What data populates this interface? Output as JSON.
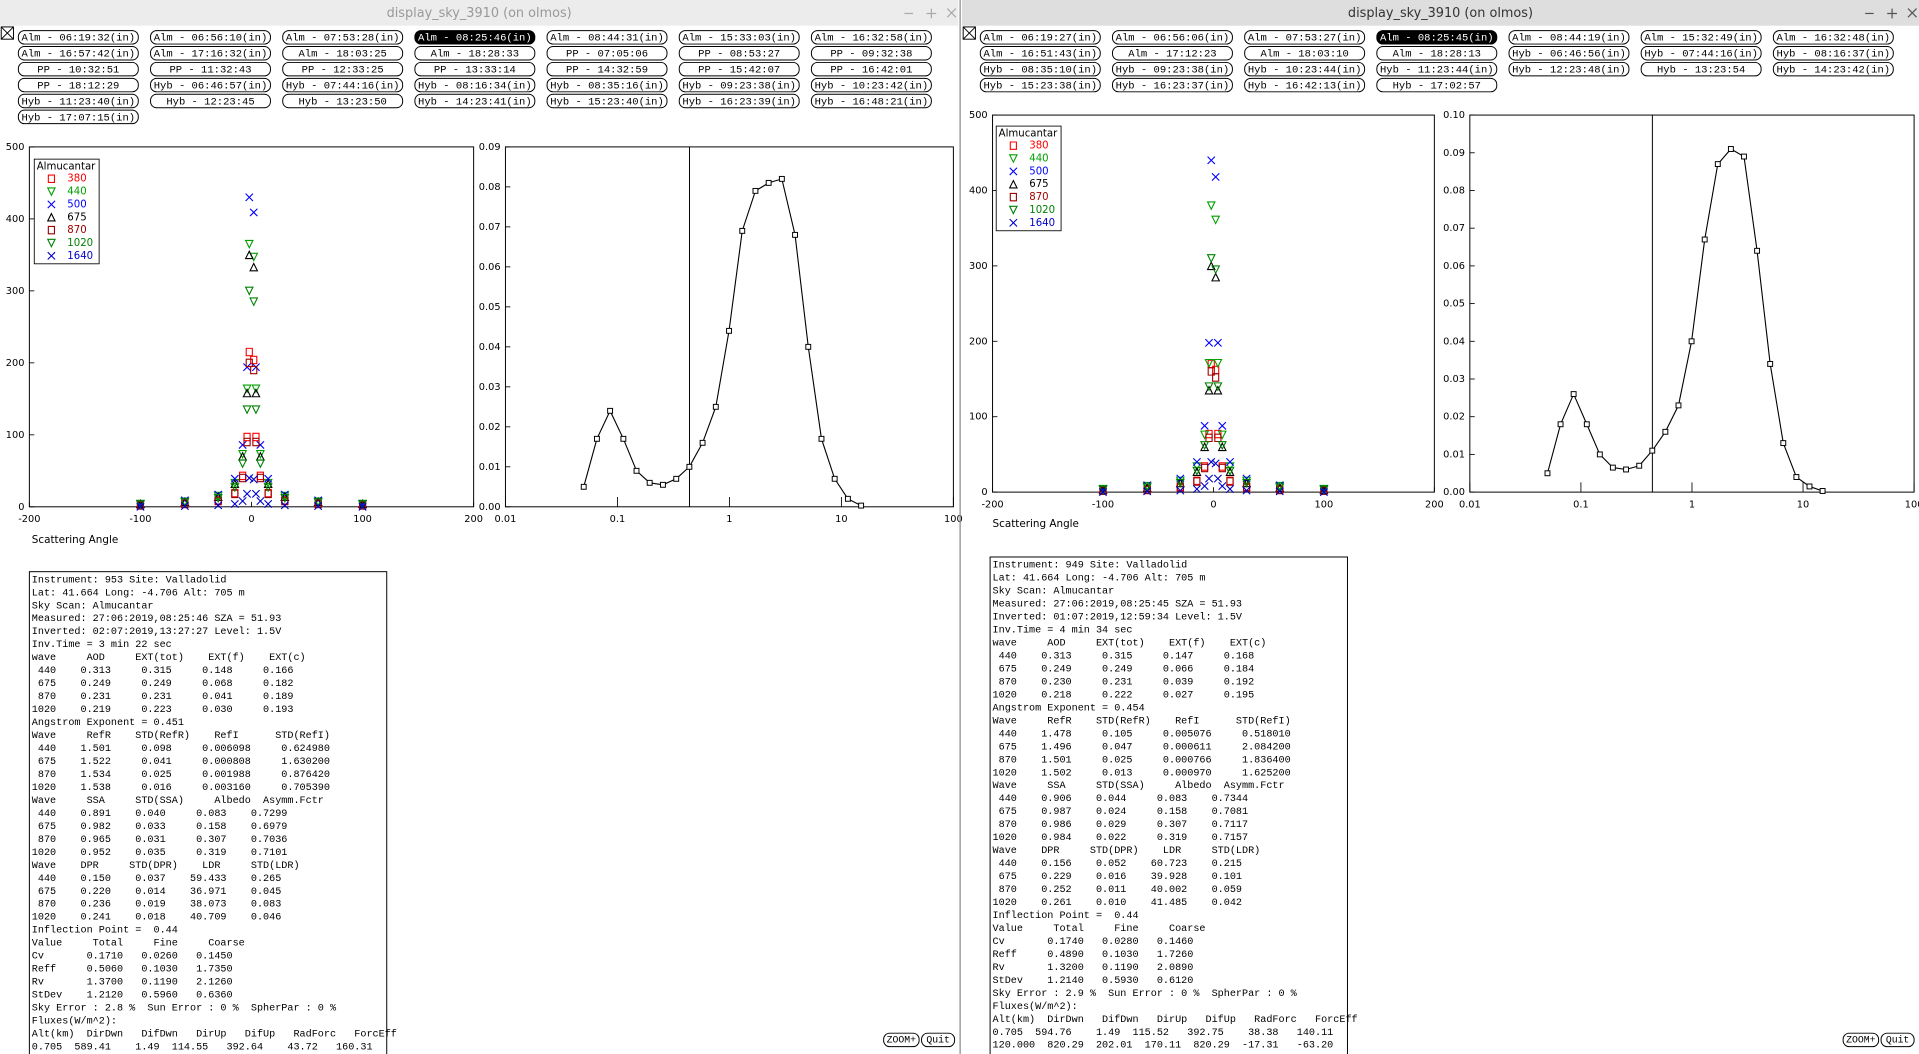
{
  "windows": [
    {
      "title": "display_sky_3910 (on olmos)",
      "active": false,
      "selected_button": 3,
      "buttons": [
        "Alm - 06:19:32(in)",
        "Alm - 06:56:10(in)",
        "Alm - 07:53:28(in)",
        "Alm - 08:25:46(in)",
        "Alm - 08:44:31(in)",
        "Alm - 15:33:03(in)",
        "Alm - 16:32:58(in)",
        "Alm - 16:57:42(in)",
        "Alm - 17:16:32(in)",
        "Alm - 18:03:25",
        "Alm - 18:28:33",
        "PP - 07:05:06",
        "PP - 08:53:27",
        "PP - 09:32:38",
        "PP - 10:32:51",
        "PP - 11:32:43",
        "PP - 12:33:25",
        "PP - 13:33:14",
        "PP - 14:32:59",
        "PP - 15:42:07",
        "PP - 16:42:01",
        "PP - 18:12:29",
        "Hyb - 06:46:57(in)",
        "Hyb - 07:44:16(in)",
        "Hyb - 08:16:34(in)",
        "Hyb - 08:35:16(in)",
        "Hyb - 09:23:38(in)",
        "Hyb - 10:23:42(in)",
        "Hyb - 11:23:40(in)",
        "Hyb - 12:23:45",
        "Hyb - 13:23:50",
        "Hyb - 14:23:41(in)",
        "Hyb - 15:23:40(in)",
        "Hyb - 16:23:39(in)",
        "Hyb - 16:48:21(in)",
        "Hyb - 17:07:15(in)"
      ],
      "scatter": {
        "type": "scatter",
        "x_label": "Scattering Angle",
        "legend_title": "Almucantar",
        "x": [
          -100,
          -60,
          -30,
          -15,
          -8,
          -4,
          -2,
          2,
          4,
          8,
          15,
          30,
          60,
          100
        ],
        "xlim": [
          -200,
          200
        ],
        "xticks": [
          -200,
          -100,
          0,
          100,
          200
        ],
        "ylim": [
          0,
          500
        ],
        "yticks": [
          0,
          100,
          200,
          300,
          400,
          500
        ],
        "series": [
          {
            "name": "380",
            "color": "#ff0000",
            "marker": "square",
            "values": [
              2,
              4,
              9,
              19,
              43,
              97,
              215,
              204,
              97,
              43,
              19,
              9,
              4,
              2
            ]
          },
          {
            "name": "440",
            "color": "#00a000",
            "marker": "triangle-down",
            "values": [
              4,
              7,
              15,
              33,
              73,
              164,
              365,
              347,
              164,
              73,
              33,
              15,
              7,
              4
            ]
          },
          {
            "name": "500",
            "color": "#0000ff",
            "marker": "x",
            "values": [
              4,
              9,
              17,
              39,
              86,
              194,
              430,
              409,
              194,
              86,
              39,
              17,
              9,
              4
            ]
          },
          {
            "name": "675",
            "color": "#000000",
            "marker": "triangle-up",
            "values": [
              4,
              7,
              14,
              32,
              70,
              158,
              350,
              333,
              158,
              70,
              32,
              14,
              7,
              4
            ]
          },
          {
            "name": "870",
            "color": "#a00000",
            "marker": "square",
            "values": [
              2,
              4,
              8,
              18,
              40,
              90,
              200,
              190,
              90,
              40,
              18,
              8,
              4,
              2
            ]
          },
          {
            "name": "1020",
            "color": "#008000",
            "marker": "triangle-down",
            "values": [
              3,
              6,
              12,
              27,
              60,
              135,
              300,
              285,
              135,
              60,
              27,
              12,
              6,
              3
            ]
          },
          {
            "name": "1640",
            "color": "#0000cc",
            "marker": "x",
            "values": [
              0,
              1,
              2,
              4,
              8,
              18,
              40,
              38,
              18,
              8,
              4,
              2,
              1,
              0
            ]
          }
        ]
      },
      "size_distribution": {
        "type": "line",
        "log_x": true,
        "vline": 0.44,
        "x": [
          0.05,
          0.0656,
          0.086,
          0.113,
          0.148,
          0.194,
          0.255,
          0.335,
          0.439,
          0.576,
          0.756,
          0.992,
          1.302,
          1.708,
          2.241,
          2.94,
          3.857,
          5.06,
          6.64,
          8.71,
          11.43,
          15.0
        ],
        "values": [
          0.005,
          0.017,
          0.024,
          0.017,
          0.009,
          0.006,
          0.0055,
          0.007,
          0.01,
          0.016,
          0.025,
          0.044,
          0.069,
          0.079,
          0.081,
          0.082,
          0.068,
          0.04,
          0.017,
          0.007,
          0.002,
          0.0003
        ],
        "xlim": [
          0.01,
          100
        ],
        "xticks": [
          0.01,
          0.1,
          1,
          10,
          100
        ],
        "ylim": [
          0,
          0.09
        ],
        "yticks": [
          {
            "value": 0,
            "label": "0.00"
          },
          0.01,
          0.02,
          0.03,
          0.04,
          0.05,
          0.06,
          0.07,
          0.08,
          0.09
        ]
      },
      "report": [
        "Instrument: 953 Site: Valladolid",
        "Lat: 41.664 Long: -4.706 Alt: 705 m",
        "Sky Scan: Almucantar",
        "Measured: 27:06:2019,08:25:46 SZA = 51.93",
        "Inverted: 02:07:2019,13:27:27 Level: 1.5V",
        "Inv.Time = 3 min 22 sec",
        "wave     AOD     EXT(tot)    EXT(f)    EXT(c)",
        " 440    0.313     0.315     0.148     0.166",
        " 675    0.249     0.249     0.068     0.182",
        " 870    0.231     0.231     0.041     0.189",
        "1020    0.219     0.223     0.030     0.193",
        "Angstrom Exponent = 0.451",
        "Wave     RefR    STD(RefR)    RefI      STD(RefI)",
        " 440    1.501     0.098     0.006098     0.624980",
        " 675    1.522     0.041     0.000808     1.630200",
        " 870    1.534     0.025     0.001988     0.876420",
        "1020    1.538     0.016     0.003160     0.705390",
        "Wave     SSA     STD(SSA)     Albedo  Asymm.Fctr",
        " 440    0.891    0.040     0.083    0.7299",
        " 675    0.982    0.033     0.158    0.6979",
        " 870    0.965    0.031     0.307    0.7036",
        "1020    0.952    0.035     0.319    0.7101",
        "Wave    DPR     STD(DPR)    LDR     STD(LDR)",
        " 440    0.150    0.037    59.433    0.265",
        " 675    0.220    0.014    36.971    0.045",
        " 870    0.236    0.019    38.073    0.083",
        "1020    0.241    0.018    40.709    0.046",
        "Inflection Point =  0.44",
        "Value     Total     Fine     Coarse",
        "Cv       0.1710   0.0260   0.1450",
        "Reff     0.5060   0.1030   1.7350",
        "Rv       1.3700   0.1190   2.1260",
        "StDev    1.2120   0.5960   0.6360",
        "Sky Error : 2.8 %  Sun Error : 0 %  SpherPar : 0 %",
        "Fluxes(W/m^2):",
        "Alt(km)  DirDwn   DifDwn   DirUp   DifUp   RadForc   ForcEff",
        "0.705  589.41    1.49  114.55   392.64    43.72   160.31"
      ],
      "controls": [
        "ZOOM+",
        "Quit"
      ]
    },
    {
      "title": "display_sky_3910 (on olmos)",
      "active": true,
      "selected_button": 3,
      "buttons": [
        "Alm - 06:19:27(in)",
        "Alm - 06:56:06(in)",
        "Alm - 07:53:27(in)",
        "Alm - 08:25:45(in)",
        "Alm - 08:44:19(in)",
        "Alm - 15:32:49(in)",
        "Alm - 16:32:48(in)",
        "Alm - 16:51:43(in)",
        "Alm - 17:12:23",
        "Alm - 18:03:10",
        "Alm - 18:28:13",
        "Hyb - 06:46:56(in)",
        "Hyb - 07:44:16(in)",
        "Hyb - 08:16:37(in)",
        "Hyb - 08:35:10(in)",
        "Hyb - 09:23:38(in)",
        "Hyb - 10:23:44(in)",
        "Hyb - 11:23:44(in)",
        "Hyb - 12:23:48(in)",
        "Hyb - 13:23:54",
        "Hyb - 14:23:42(in)",
        "Hyb - 15:23:38(in)",
        "Hyb - 16:23:37(in)",
        "Hyb - 16:42:13(in)",
        "Hyb - 17:02:57"
      ],
      "scatter": {
        "type": "scatter",
        "x_label": "Scattering Angle",
        "legend_title": "Almucantar",
        "x": [
          -100,
          -60,
          -30,
          -15,
          -8,
          -4,
          -2,
          2,
          4,
          8,
          15,
          30,
          60,
          100
        ],
        "xlim": [
          -200,
          200
        ],
        "xticks": [
          -200,
          -100,
          0,
          100,
          200
        ],
        "ylim": [
          0,
          500
        ],
        "yticks": [
          0,
          100,
          200,
          300,
          400,
          500
        ],
        "series": [
          {
            "name": "380",
            "color": "#ff0000",
            "marker": "square",
            "values": [
              2,
              3,
              7,
              15,
              34,
              77,
              170,
              162,
              77,
              34,
              15,
              7,
              3,
              2
            ]
          },
          {
            "name": "440",
            "color": "#00a000",
            "marker": "triangle-down",
            "values": [
              4,
              8,
              15,
              34,
              76,
              171,
              380,
              361,
              171,
              76,
              34,
              15,
              8,
              4
            ]
          },
          {
            "name": "500",
            "color": "#0000ff",
            "marker": "x",
            "values": [
              4,
              9,
              18,
              40,
              88,
              198,
              440,
              418,
              198,
              88,
              40,
              18,
              9,
              4
            ]
          },
          {
            "name": "675",
            "color": "#000000",
            "marker": "triangle-up",
            "values": [
              3,
              6,
              12,
              27,
              60,
              135,
              300,
              285,
              135,
              60,
              27,
              12,
              6,
              3
            ]
          },
          {
            "name": "870",
            "color": "#a00000",
            "marker": "square",
            "values": [
              2,
              3,
              6,
              14,
              32,
              72,
              160,
              152,
              72,
              32,
              14,
              6,
              3,
              2
            ]
          },
          {
            "name": "1020",
            "color": "#008000",
            "marker": "triangle-down",
            "values": [
              3,
              6,
              12,
              28,
              62,
              140,
              310,
              295,
              140,
              62,
              28,
              12,
              6,
              3
            ]
          },
          {
            "name": "1640",
            "color": "#0000cc",
            "marker": "x",
            "values": [
              0,
              1,
              2,
              4,
              8,
              18,
              40,
              38,
              18,
              8,
              4,
              2,
              1,
              0
            ]
          }
        ]
      },
      "size_distribution": {
        "type": "line",
        "log_x": true,
        "vline": 0.44,
        "x": [
          0.05,
          0.0656,
          0.086,
          0.113,
          0.148,
          0.194,
          0.255,
          0.335,
          0.439,
          0.576,
          0.756,
          0.992,
          1.302,
          1.708,
          2.241,
          2.94,
          3.857,
          5.06,
          6.64,
          8.71,
          11.43,
          15.0
        ],
        "values": [
          0.005,
          0.018,
          0.026,
          0.018,
          0.01,
          0.0065,
          0.006,
          0.007,
          0.011,
          0.016,
          0.023,
          0.04,
          0.067,
          0.087,
          0.091,
          0.089,
          0.064,
          0.034,
          0.013,
          0.004,
          0.0015,
          0.0003
        ],
        "xlim": [
          0.01,
          100
        ],
        "xticks": [
          0.01,
          0.1,
          1,
          10,
          100
        ],
        "ylim": [
          0,
          0.1
        ],
        "yticks": [
          {
            "value": 0,
            "label": "0.00"
          },
          0.01,
          0.02,
          0.03,
          0.04,
          0.05,
          0.06,
          0.07,
          0.08,
          0.09,
          {
            "value": 0.1,
            "label": "0.10"
          }
        ]
      },
      "report": [
        "Instrument: 949 Site: Valladolid",
        "Lat: 41.664 Long: -4.706 Alt: 705 m",
        "Sky Scan: Almucantar",
        "Measured: 27:06:2019,08:25:45 SZA = 51.93",
        "Inverted: 01:07:2019,12:59:34 Level: 1.5V",
        "Inv.Time = 4 min 34 sec",
        "wave     AOD     EXT(tot)    EXT(f)    EXT(c)",
        " 440    0.313     0.315     0.147     0.168",
        " 675    0.249     0.249     0.066     0.184",
        " 870    0.230     0.231     0.039     0.192",
        "1020    0.218     0.222     0.027     0.195",
        "Angstrom Exponent = 0.454",
        "Wave     RefR    STD(RefR)    RefI      STD(RefI)",
        " 440    1.478     0.105     0.005076     0.518010",
        " 675    1.496     0.047     0.000611     2.084200",
        " 870    1.501     0.025     0.000766     1.836400",
        "1020    1.502     0.013     0.000970     1.625200",
        "Wave     SSA     STD(SSA)     Albedo  Asymm.Fctr",
        " 440    0.906    0.044     0.083    0.7344",
        " 675    0.987    0.024     0.158    0.7081",
        " 870    0.986    0.029     0.307    0.7117",
        "1020    0.984    0.022     0.319    0.7157",
        "Wave    DPR     STD(DPR)    LDR     STD(LDR)",
        " 440    0.156    0.052    60.723    0.215",
        " 675    0.229    0.016    39.928    0.101",
        " 870    0.252    0.011    40.002    0.059",
        "1020    0.261    0.010    41.485    0.042",
        "Inflection Point =  0.44",
        "Value     Total     Fine     Coarse",
        "Cv       0.1740   0.0280   0.1460",
        "Reff     0.4890   0.1030   1.7260",
        "Rv       1.3200   0.1190   2.0890",
        "StDev    1.2140   0.5930   0.6120",
        "Sky Error : 2.9 %  Sun Error : 0 %  SpherPar : 0 %",
        "Fluxes(W/m^2):",
        "Alt(km)  DirDwn   DifDwn   DirUp   DifUp   RadForc   ForcEff",
        "0.705  594.76    1.49  115.52   392.75    38.38   140.11",
        "120.000  820.29  202.01  170.11  820.29  -17.31   -63.20"
      ],
      "controls": [
        "ZOOM+",
        "Quit"
      ]
    }
  ]
}
